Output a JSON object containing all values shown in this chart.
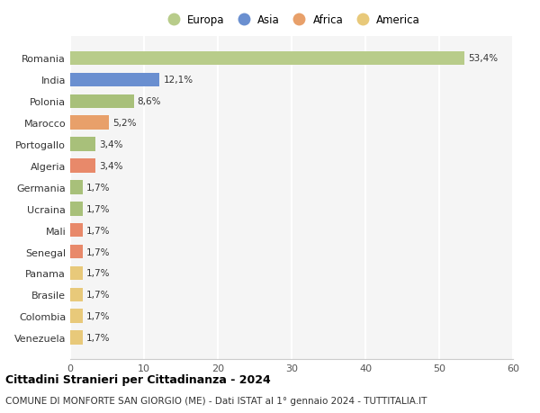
{
  "categories": [
    "Venezuela",
    "Colombia",
    "Brasile",
    "Panama",
    "Senegal",
    "Mali",
    "Ucraina",
    "Germania",
    "Algeria",
    "Portogallo",
    "Marocco",
    "Polonia",
    "India",
    "Romania"
  ],
  "values": [
    1.7,
    1.7,
    1.7,
    1.7,
    1.7,
    1.7,
    1.7,
    1.7,
    3.4,
    3.4,
    5.2,
    8.6,
    12.1,
    53.4
  ],
  "labels": [
    "1,7%",
    "1,7%",
    "1,7%",
    "1,7%",
    "1,7%",
    "1,7%",
    "1,7%",
    "1,7%",
    "3,4%",
    "3,4%",
    "5,2%",
    "8,6%",
    "12,1%",
    "53,4%"
  ],
  "colors": [
    "#e8c97a",
    "#e8c97a",
    "#e8c97a",
    "#e8c97a",
    "#e8896a",
    "#e8896a",
    "#a8c07a",
    "#a8c07a",
    "#e8896a",
    "#a8c07a",
    "#e8a06a",
    "#a8c07a",
    "#6a8fd0",
    "#b8cc8a"
  ],
  "continent": [
    "America",
    "America",
    "America",
    "America",
    "Africa",
    "Africa",
    "Europa",
    "Europa",
    "Africa",
    "Europa",
    "Africa",
    "Europa",
    "Asia",
    "Europa"
  ],
  "legend_labels": [
    "Europa",
    "Asia",
    "Africa",
    "America"
  ],
  "legend_colors": [
    "#b8cc8a",
    "#6a8fd0",
    "#e8a06a",
    "#e8c97a"
  ],
  "title1": "Cittadini Stranieri per Cittadinanza - 2024",
  "title2": "COMUNE DI MONFORTE SAN GIORGIO (ME) - Dati ISTAT al 1° gennaio 2024 - TUTTITALIA.IT",
  "xlim": [
    0,
    60
  ],
  "xticks": [
    0,
    10,
    20,
    30,
    40,
    50,
    60
  ],
  "bg_color": "#ffffff",
  "plot_bg_color": "#f5f5f5",
  "grid_color": "#ffffff"
}
